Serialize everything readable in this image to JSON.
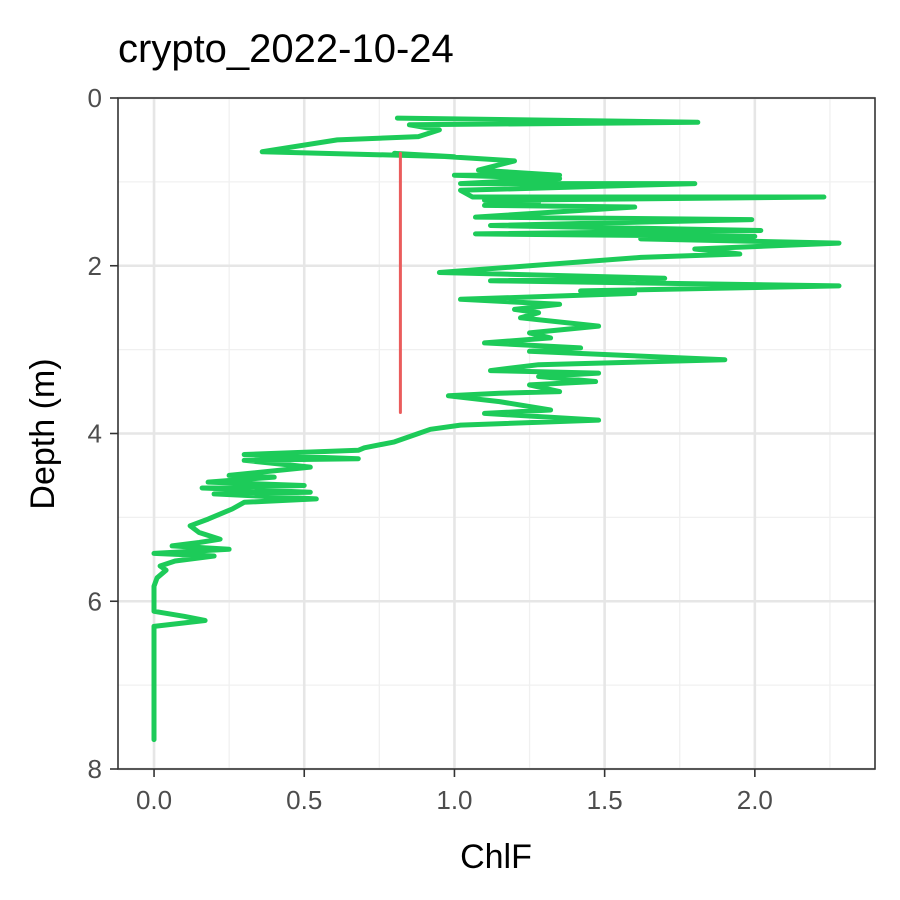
{
  "chart_data": {
    "type": "line",
    "title": "crypto_2022-10-24",
    "xlabel": "ChlF",
    "ylabel": "Depth (m)",
    "xlim": [
      -0.12,
      2.4
    ],
    "ylim": [
      0,
      8
    ],
    "y_reversed": true,
    "grid": true,
    "legend": "none",
    "x_ticks": [
      {
        "value": 0.0,
        "label": "0.0"
      },
      {
        "value": 0.5,
        "label": "0.5"
      },
      {
        "value": 1.0,
        "label": "1.0"
      },
      {
        "value": 1.5,
        "label": "1.5"
      },
      {
        "value": 2.0,
        "label": "2.0"
      }
    ],
    "y_ticks": [
      {
        "value": 0,
        "label": "0"
      },
      {
        "value": 2,
        "label": "2"
      },
      {
        "value": 4,
        "label": "4"
      },
      {
        "value": 6,
        "label": "6"
      },
      {
        "value": 8,
        "label": "8"
      }
    ],
    "series": [
      {
        "color": "#1dcb59",
        "points": [
          [
            0.81,
            0.24
          ],
          [
            1.81,
            0.29
          ],
          [
            0.85,
            0.32
          ],
          [
            0.95,
            0.38
          ],
          [
            0.88,
            0.46
          ],
          [
            0.61,
            0.5
          ],
          [
            0.36,
            0.64
          ],
          [
            1.0,
            0.7
          ],
          [
            0.8,
            0.66
          ],
          [
            1.2,
            0.75
          ],
          [
            1.08,
            0.86
          ],
          [
            1.35,
            0.92
          ],
          [
            1.0,
            0.92
          ],
          [
            1.35,
            0.96
          ],
          [
            1.02,
            1.02
          ],
          [
            1.8,
            1.02
          ],
          [
            1.02,
            1.1
          ],
          [
            1.06,
            1.18
          ],
          [
            2.23,
            1.18
          ],
          [
            1.1,
            1.22
          ],
          [
            1.28,
            1.24
          ],
          [
            1.1,
            1.28
          ],
          [
            1.6,
            1.3
          ],
          [
            1.07,
            1.42
          ],
          [
            1.99,
            1.45
          ],
          [
            1.12,
            1.52
          ],
          [
            2.02,
            1.58
          ],
          [
            1.07,
            1.62
          ],
          [
            2.0,
            1.65
          ],
          [
            1.62,
            1.68
          ],
          [
            2.28,
            1.73
          ],
          [
            1.8,
            1.8
          ],
          [
            1.95,
            1.86
          ],
          [
            1.62,
            1.9
          ],
          [
            0.95,
            2.08
          ],
          [
            1.7,
            2.15
          ],
          [
            1.12,
            2.18
          ],
          [
            2.28,
            2.24
          ],
          [
            1.42,
            2.3
          ],
          [
            1.6,
            2.33
          ],
          [
            1.02,
            2.4
          ],
          [
            1.35,
            2.46
          ],
          [
            1.2,
            2.52
          ],
          [
            1.28,
            2.56
          ],
          [
            1.22,
            2.62
          ],
          [
            1.48,
            2.72
          ],
          [
            1.25,
            2.8
          ],
          [
            1.32,
            2.86
          ],
          [
            1.1,
            2.92
          ],
          [
            1.42,
            2.98
          ],
          [
            1.25,
            3.02
          ],
          [
            1.9,
            3.12
          ],
          [
            1.28,
            3.18
          ],
          [
            1.12,
            3.25
          ],
          [
            1.48,
            3.28
          ],
          [
            1.28,
            3.32
          ],
          [
            1.47,
            3.38
          ],
          [
            1.25,
            3.42
          ],
          [
            1.35,
            3.5
          ],
          [
            1.15,
            3.52
          ],
          [
            0.98,
            3.55
          ],
          [
            1.15,
            3.62
          ],
          [
            1.32,
            3.72
          ],
          [
            1.1,
            3.76
          ],
          [
            1.48,
            3.84
          ],
          [
            1.02,
            3.9
          ],
          [
            0.92,
            3.95
          ],
          [
            0.88,
            4.0
          ],
          [
            0.8,
            4.1
          ],
          [
            0.7,
            4.17
          ],
          [
            0.68,
            4.2
          ],
          [
            0.3,
            4.25
          ],
          [
            0.68,
            4.3
          ],
          [
            0.3,
            4.32
          ],
          [
            0.52,
            4.4
          ],
          [
            0.25,
            4.5
          ],
          [
            0.4,
            4.52
          ],
          [
            0.18,
            4.58
          ],
          [
            0.5,
            4.62
          ],
          [
            0.16,
            4.65
          ],
          [
            0.52,
            4.7
          ],
          [
            0.2,
            4.72
          ],
          [
            0.54,
            4.78
          ],
          [
            0.3,
            4.82
          ],
          [
            0.26,
            4.9
          ],
          [
            0.18,
            5.02
          ],
          [
            0.12,
            5.1
          ],
          [
            0.15,
            5.18
          ],
          [
            0.22,
            5.26
          ],
          [
            0.15,
            5.3
          ],
          [
            0.06,
            5.34
          ],
          [
            0.25,
            5.38
          ],
          [
            0.0,
            5.43
          ],
          [
            0.2,
            5.46
          ],
          [
            0.07,
            5.52
          ],
          [
            0.02,
            5.58
          ],
          [
            0.04,
            5.63
          ],
          [
            0.01,
            5.72
          ],
          [
            0.0,
            5.82
          ],
          [
            0.0,
            6.02
          ],
          [
            0.0,
            6.12
          ],
          [
            0.1,
            6.18
          ],
          [
            0.17,
            6.23
          ],
          [
            0.0,
            6.3
          ],
          [
            0.0,
            7.0
          ],
          [
            0.0,
            7.65
          ]
        ]
      },
      {
        "color": "#ea5c5c",
        "points": [
          [
            0.82,
            0.66
          ],
          [
            0.82,
            3.75
          ]
        ]
      }
    ]
  }
}
